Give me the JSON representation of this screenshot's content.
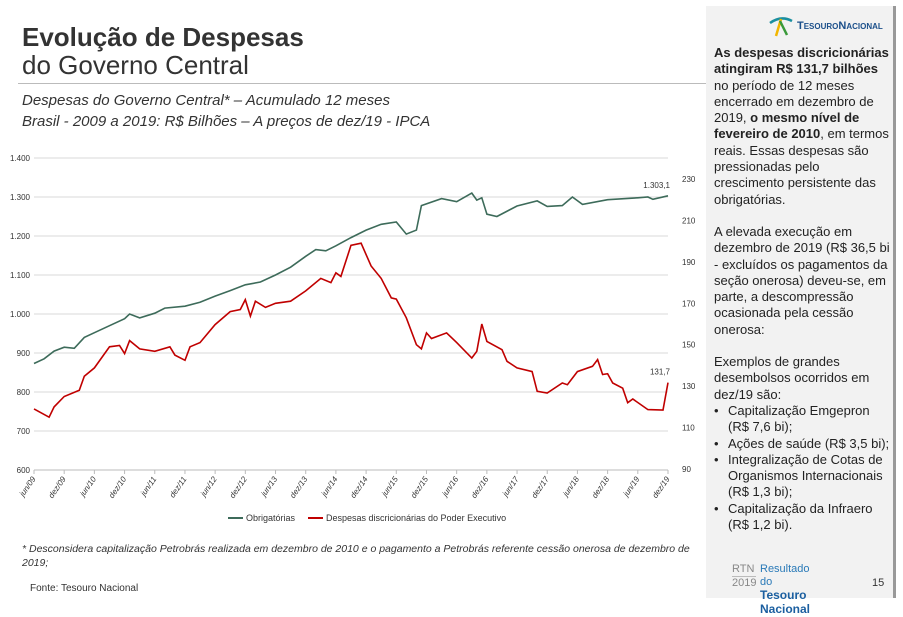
{
  "header": {
    "title_line1": "Evolução de Despesas",
    "title_line2": "do Governo Central",
    "subtitle1": "Despesas do Governo Central* – Acumulado 12 meses",
    "subtitle2": "Brasil - 2009 a 2019: R$ Bilhões – A preços de dez/19 - IPCA"
  },
  "chart_data": {
    "type": "line",
    "title": "Despesas do Governo Central* – Acumulado 12 meses",
    "left_axis": {
      "ticks": [
        "600",
        "700",
        "800",
        "900",
        "1.000",
        "1.100",
        "1.200",
        "1.300",
        "1.400"
      ],
      "range": [
        600,
        1400
      ]
    },
    "right_axis": {
      "ticks": [
        "90",
        "110",
        "130",
        "150",
        "170",
        "190",
        "210",
        "230"
      ],
      "range": [
        90,
        230
      ]
    },
    "x_ticks": [
      "jun/09",
      "dez/09",
      "jun/10",
      "dez/10",
      "jun/11",
      "dez/11",
      "jun/12",
      "dez/12",
      "jun/13",
      "dez/13",
      "jun/14",
      "dez/14",
      "jun/15",
      "dez/15",
      "jun/16",
      "dez/16",
      "jun/17",
      "dez/17",
      "jun/18",
      "dez/18",
      "jun/19",
      "dez/19"
    ],
    "grid": true,
    "legend_placement": "bottom",
    "series": [
      {
        "name": "Obrigatórias",
        "axis": "left",
        "color": "#3d6b5a",
        "end_label": "1.303,1",
        "points": [
          [
            "2009-06",
            873
          ],
          [
            "2009-08",
            885
          ],
          [
            "2009-10",
            905
          ],
          [
            "2009-12",
            915
          ],
          [
            "2010-02",
            912
          ],
          [
            "2010-04",
            940
          ],
          [
            "2010-06",
            952
          ],
          [
            "2010-09",
            970
          ],
          [
            "2010-12",
            988
          ],
          [
            "2011-01",
            1000
          ],
          [
            "2011-03",
            990
          ],
          [
            "2011-06",
            1002
          ],
          [
            "2011-08",
            1015
          ],
          [
            "2011-12",
            1020
          ],
          [
            "2012-03",
            1030
          ],
          [
            "2012-06",
            1046
          ],
          [
            "2012-09",
            1060
          ],
          [
            "2012-12",
            1075
          ],
          [
            "2013-03",
            1082
          ],
          [
            "2013-06",
            1100
          ],
          [
            "2013-09",
            1120
          ],
          [
            "2013-12",
            1148
          ],
          [
            "2014-02",
            1165
          ],
          [
            "2014-04",
            1162
          ],
          [
            "2014-06",
            1175
          ],
          [
            "2014-09",
            1196
          ],
          [
            "2014-12",
            1215
          ],
          [
            "2015-03",
            1230
          ],
          [
            "2015-06",
            1236
          ],
          [
            "2015-08",
            1205
          ],
          [
            "2015-10",
            1215
          ],
          [
            "2015-11",
            1278
          ],
          [
            "2016-03",
            1296
          ],
          [
            "2016-06",
            1288
          ],
          [
            "2016-09",
            1310
          ],
          [
            "2016-10",
            1292
          ],
          [
            "2016-11",
            1298
          ],
          [
            "2016-12",
            1256
          ],
          [
            "2017-02",
            1250
          ],
          [
            "2017-06",
            1277
          ],
          [
            "2017-10",
            1290
          ],
          [
            "2017-12",
            1276
          ],
          [
            "2018-03",
            1278
          ],
          [
            "2018-05",
            1300
          ],
          [
            "2018-07",
            1281
          ],
          [
            "2018-12",
            1293
          ],
          [
            "2019-06",
            1298
          ],
          [
            "2019-08",
            1300
          ],
          [
            "2019-09",
            1294
          ],
          [
            "2019-12",
            1303.1
          ]
        ]
      },
      {
        "name": "Despesas discricionárias do Poder Executivo",
        "axis": "right",
        "color": "#c00000",
        "end_label": "131,7",
        "points": [
          [
            "2009-06",
            119
          ],
          [
            "2009-09",
            115
          ],
          [
            "2009-10",
            120
          ],
          [
            "2009-12",
            125
          ],
          [
            "2010-03",
            128
          ],
          [
            "2010-04",
            134.8
          ],
          [
            "2010-06",
            138.8
          ],
          [
            "2010-09",
            149
          ],
          [
            "2010-11",
            149.6
          ],
          [
            "2010-12",
            145.7
          ],
          [
            "2011-01",
            152
          ],
          [
            "2011-03",
            148
          ],
          [
            "2011-06",
            146.8
          ],
          [
            "2011-09",
            149
          ],
          [
            "2011-10",
            145
          ],
          [
            "2011-12",
            142.5
          ],
          [
            "2012-01",
            149
          ],
          [
            "2012-03",
            151
          ],
          [
            "2012-06",
            159.7
          ],
          [
            "2012-09",
            166
          ],
          [
            "2012-11",
            167
          ],
          [
            "2012-12",
            171.8
          ],
          [
            "2013-01",
            163.8
          ],
          [
            "2013-02",
            171
          ],
          [
            "2013-04",
            168
          ],
          [
            "2013-06",
            170
          ],
          [
            "2013-09",
            171
          ],
          [
            "2013-12",
            176
          ],
          [
            "2014-03",
            182
          ],
          [
            "2014-05",
            180
          ],
          [
            "2014-06",
            184.7
          ],
          [
            "2014-07",
            183
          ],
          [
            "2014-09",
            198
          ],
          [
            "2014-11",
            199
          ],
          [
            "2015-01",
            188
          ],
          [
            "2015-03",
            182
          ],
          [
            "2015-05",
            172.6
          ],
          [
            "2015-06",
            172
          ],
          [
            "2015-08",
            163
          ],
          [
            "2015-10",
            150
          ],
          [
            "2015-11",
            148
          ],
          [
            "2015-12",
            155.7
          ],
          [
            "2016-01",
            153
          ],
          [
            "2016-04",
            155.7
          ],
          [
            "2016-06",
            151
          ],
          [
            "2016-09",
            143.6
          ],
          [
            "2016-10",
            146.8
          ],
          [
            "2016-11",
            160
          ],
          [
            "2016-12",
            151.6
          ],
          [
            "2017-03",
            147.6
          ],
          [
            "2017-04",
            142
          ],
          [
            "2017-06",
            138.8
          ],
          [
            "2017-09",
            137
          ],
          [
            "2017-10",
            127.5
          ],
          [
            "2017-12",
            126.7
          ],
          [
            "2018-03",
            131.5
          ],
          [
            "2018-04",
            130.7
          ],
          [
            "2018-06",
            137
          ],
          [
            "2018-09",
            139.6
          ],
          [
            "2018-10",
            142.8
          ],
          [
            "2018-11",
            135.6
          ],
          [
            "2018-12",
            136
          ],
          [
            "2019-01",
            131.5
          ],
          [
            "2019-03",
            129
          ],
          [
            "2019-04",
            122
          ],
          [
            "2019-05",
            123.8
          ],
          [
            "2019-08",
            118.7
          ],
          [
            "2019-11",
            118.5
          ],
          [
            "2019-12",
            131.7
          ]
        ]
      }
    ]
  },
  "footnote": "* Desconsidera capitalização Petrobrás realizada em dezembro de 2010 e o pagamento a Petrobrás referente cessão onerosa de dezembro de 2019;",
  "source": "Fonte: Tesouro Nacional",
  "sidebar": {
    "logo_text": "TesouroNacional",
    "p1_bold": "As despesas discricionárias atingiram R$ 131,7 bilhões",
    "p1_a": " no período de 12 meses encerrado em dezembro de 2019, ",
    "p1_bold2": "o mesmo nível de fevereiro de 2010",
    "p1_b": ", em termos reais. Essas despesas são pressionadas pelo crescimento persistente das obrigatórias.",
    "p2": "A elevada execução em dezembro de 2019  (R$ 36,5 bi - excluídos os pagamentos da seção onerosa) deveu-se, em parte, a descompressão ocasionada pela cessão onerosa:",
    "p3": "Exemplos de grandes desembolsos ocorridos em dez/19 são:",
    "bullets": [
      "Capitalização Emgepron (R$ 7,6 bi);",
      "Ações de saúde (R$ 3,5 bi);",
      "Integralização de Cotas de Organismos Internacionais (R$ 1,3 bi);",
      "Capitalização da Infraero (R$ 1,2 bi)."
    ]
  },
  "footer": {
    "rtn": "RTN",
    "year": "2019",
    "line1": "Resultado do",
    "line2": "Tesouro Nacional",
    "page": "15"
  }
}
